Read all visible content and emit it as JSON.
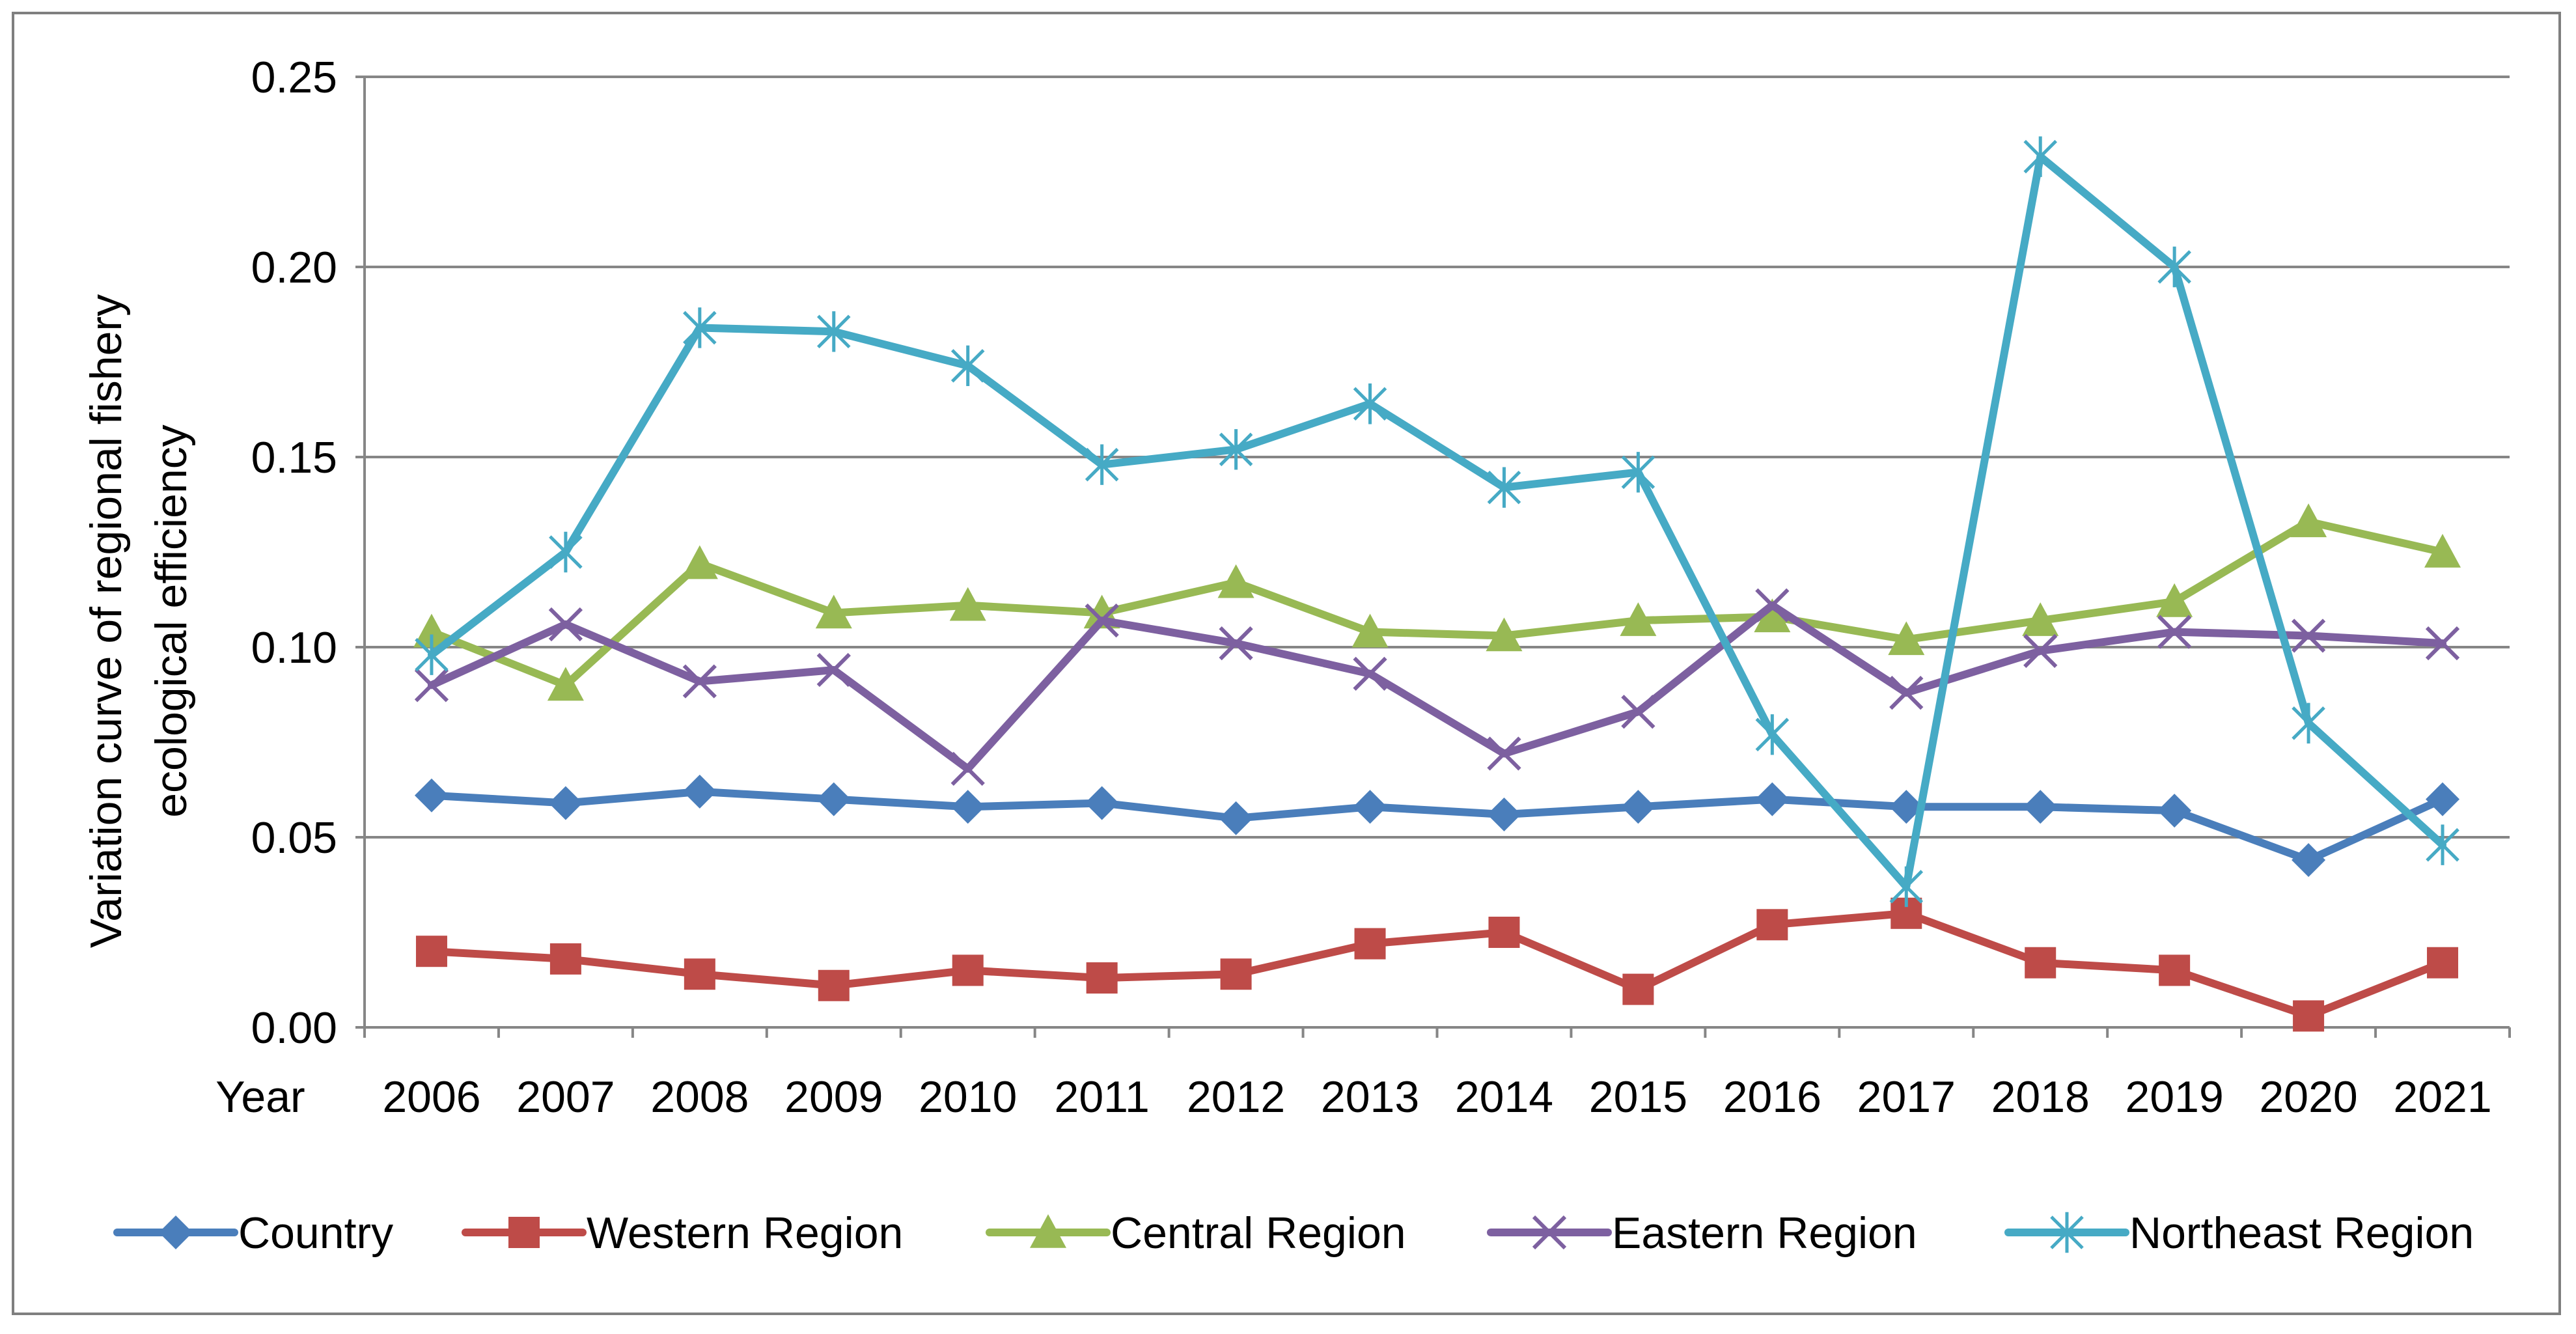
{
  "chart_data": {
    "type": "line",
    "title": "",
    "ylabel_lines": [
      "Variation curve of  regional fishery",
      "ecological efficiency"
    ],
    "xlabel": "Year",
    "x": [
      "2006",
      "2007",
      "2008",
      "2009",
      "2010",
      "2011",
      "2012",
      "2013",
      "2014",
      "2015",
      "2016",
      "2017",
      "2018",
      "2019",
      "2020",
      "2021"
    ],
    "ylim": [
      0,
      0.25
    ],
    "yticks": [
      0,
      0.05,
      0.1,
      0.15,
      0.2,
      0.25
    ],
    "ytick_labels": [
      "0.00",
      "0.05",
      "0.10",
      "0.15",
      "0.20",
      "0.25"
    ],
    "grid": true,
    "legend_position": "bottom",
    "series": [
      {
        "name": "Country",
        "color": "#4a7ebb",
        "marker": "diamond",
        "values": [
          0.061,
          0.059,
          0.062,
          0.06,
          0.058,
          0.059,
          0.055,
          0.058,
          0.056,
          0.058,
          0.06,
          0.058,
          0.058,
          0.057,
          0.044,
          0.06
        ]
      },
      {
        "name": "Western Region",
        "color": "#be4b48",
        "marker": "square",
        "values": [
          0.02,
          0.018,
          0.014,
          0.011,
          0.015,
          0.013,
          0.014,
          0.022,
          0.025,
          0.01,
          0.027,
          0.03,
          0.017,
          0.015,
          0.003,
          0.017
        ]
      },
      {
        "name": "Central Region",
        "color": "#98b954",
        "marker": "triangle",
        "values": [
          0.104,
          0.09,
          0.122,
          0.109,
          0.111,
          0.109,
          0.117,
          0.104,
          0.103,
          0.107,
          0.108,
          0.102,
          0.107,
          0.112,
          0.133,
          0.125
        ]
      },
      {
        "name": "Eastern Region",
        "color": "#7d60a0",
        "marker": "x",
        "values": [
          0.09,
          0.106,
          0.091,
          0.094,
          0.068,
          0.107,
          0.101,
          0.093,
          0.072,
          0.083,
          0.111,
          0.088,
          0.099,
          0.104,
          0.103,
          0.101
        ]
      },
      {
        "name": "Northeast Region",
        "color": "#46aac5",
        "marker": "star",
        "values": [
          0.098,
          0.125,
          0.184,
          0.183,
          0.174,
          0.148,
          0.152,
          0.164,
          0.142,
          0.146,
          0.077,
          0.037,
          0.229,
          0.2,
          0.08,
          0.048
        ]
      }
    ]
  }
}
